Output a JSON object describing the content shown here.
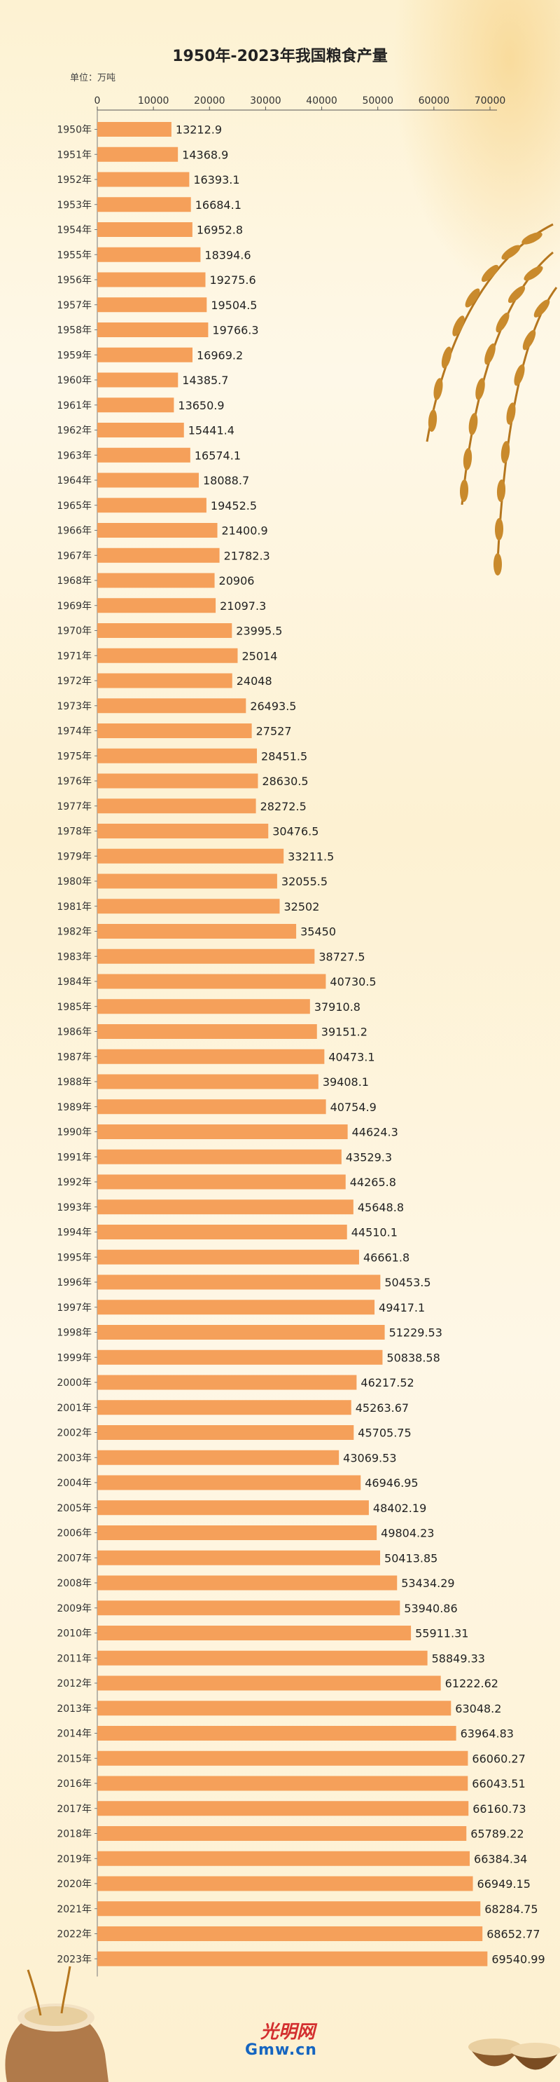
{
  "chart_data": {
    "type": "bar",
    "orientation": "horizontal",
    "title": "1950年-2023年我国粮食产量",
    "unit_label": "单位：万吨",
    "xlim": [
      0,
      70000
    ],
    "xticks": [
      0,
      10000,
      20000,
      30000,
      40000,
      50000,
      60000,
      70000
    ],
    "grid": false,
    "legend": "none",
    "bar_color": "#f5a05a",
    "categories": [
      "1950年",
      "1951年",
      "1952年",
      "1953年",
      "1954年",
      "1955年",
      "1956年",
      "1957年",
      "1958年",
      "1959年",
      "1960年",
      "1961年",
      "1962年",
      "1963年",
      "1964年",
      "1965年",
      "1966年",
      "1967年",
      "1968年",
      "1969年",
      "1970年",
      "1971年",
      "1972年",
      "1973年",
      "1974年",
      "1975年",
      "1976年",
      "1977年",
      "1978年",
      "1979年",
      "1980年",
      "1981年",
      "1982年",
      "1983年",
      "1984年",
      "1985年",
      "1986年",
      "1987年",
      "1988年",
      "1989年",
      "1990年",
      "1991年",
      "1992年",
      "1993年",
      "1994年",
      "1995年",
      "1996年",
      "1997年",
      "1998年",
      "1999年",
      "2000年",
      "2001年",
      "2002年",
      "2003年",
      "2004年",
      "2005年",
      "2006年",
      "2007年",
      "2008年",
      "2009年",
      "2010年",
      "2011年",
      "2012年",
      "2013年",
      "2014年",
      "2015年",
      "2016年",
      "2017年",
      "2018年",
      "2019年",
      "2020年",
      "2021年",
      "2022年",
      "2023年"
    ],
    "values": [
      "13212.9",
      "14368.9",
      "16393.1",
      "16684.1",
      "16952.8",
      "18394.6",
      "19275.6",
      "19504.5",
      "19766.3",
      "16969.2",
      "14385.7",
      "13650.9",
      "15441.4",
      "16574.1",
      "18088.7",
      "19452.5",
      "21400.9",
      "21782.3",
      "20906",
      "21097.3",
      "23995.5",
      "25014",
      "24048",
      "26493.5",
      "27527",
      "28451.5",
      "28630.5",
      "28272.5",
      "30476.5",
      "33211.5",
      "32055.5",
      "32502",
      "35450",
      "38727.5",
      "40730.5",
      "37910.8",
      "39151.2",
      "40473.1",
      "39408.1",
      "40754.9",
      "44624.3",
      "43529.3",
      "44265.8",
      "45648.8",
      "44510.1",
      "46661.8",
      "50453.5",
      "49417.1",
      "51229.53",
      "50838.58",
      "46217.52",
      "45263.67",
      "45705.75",
      "43069.53",
      "46946.95",
      "48402.19",
      "49804.23",
      "50413.85",
      "53434.29",
      "53940.86",
      "55911.31",
      "58849.33",
      "61222.62",
      "63048.2",
      "63964.83",
      "66060.27",
      "66043.51",
      "66160.73",
      "65789.22",
      "66384.34",
      "66949.15",
      "68284.75",
      "68652.77",
      "69540.99"
    ]
  },
  "logo": {
    "text": "Gmw.cn",
    "cn": "光明网"
  }
}
